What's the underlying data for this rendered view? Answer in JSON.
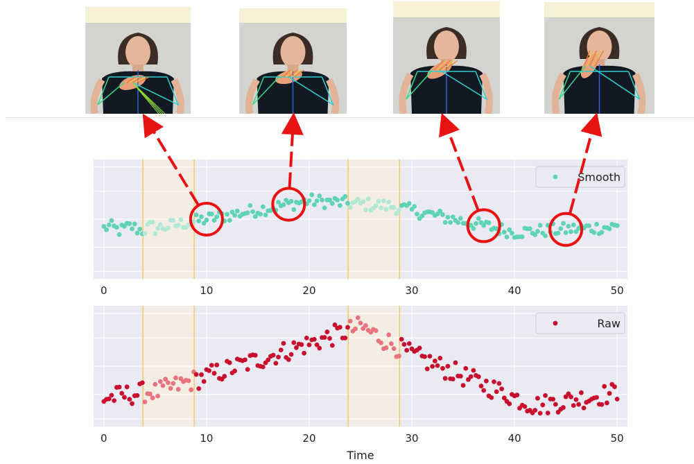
{
  "frames": [
    {
      "icon": "signer-frame-1"
    },
    {
      "icon": "signer-frame-2"
    },
    {
      "icon": "signer-frame-3"
    },
    {
      "icon": "signer-frame-4"
    }
  ],
  "colors": {
    "smooth": "#5ed3b5",
    "smooth_faded": "#b4e8d6",
    "raw": "#c8102e",
    "raw_faded": "#e8747e",
    "plot_bg": "#eaeaf2",
    "shade": "#f3ede3",
    "boundary_line": "#f5c76b",
    "arrow": "#e81212"
  },
  "chart_data": [
    {
      "type": "scatter",
      "series": [
        {
          "name": "Smooth"
        }
      ],
      "xlim": [
        -1,
        51
      ],
      "ylim": [
        -1.6,
        1.6
      ],
      "xticks": [
        0,
        10,
        20,
        30,
        40,
        50
      ],
      "xticklabels": [
        "0",
        "10",
        "20",
        "30",
        "40",
        "50"
      ],
      "shaded_regions": [
        [
          3.8,
          8.8
        ],
        [
          23.8,
          28.8
        ]
      ],
      "legend": "top-right",
      "grid": true,
      "highlighted_points_x": [
        10,
        18,
        37,
        45
      ]
    },
    {
      "type": "scatter",
      "series": [
        {
          "name": "Raw"
        }
      ],
      "xlabel": "Time",
      "xlim": [
        -1,
        51
      ],
      "ylim": [
        -1.6,
        1.6
      ],
      "xticks": [
        0,
        10,
        20,
        30,
        40,
        50
      ],
      "xticklabels": [
        "0",
        "10",
        "20",
        "30",
        "40",
        "50"
      ],
      "shaded_regions": [
        [
          3.8,
          8.8
        ],
        [
          23.8,
          28.8
        ]
      ],
      "legend": "top-right",
      "grid": true
    }
  ]
}
